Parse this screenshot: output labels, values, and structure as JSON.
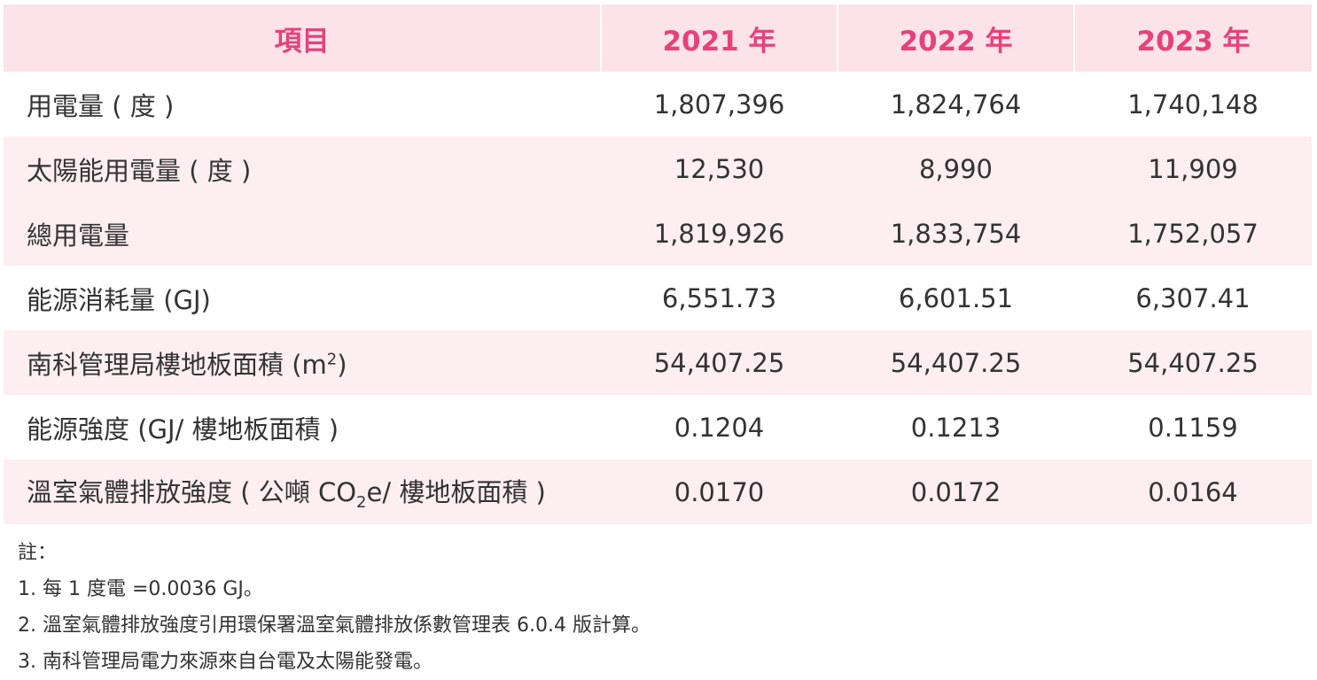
{
  "table": {
    "headers": [
      "項目",
      "2021 年",
      "2022 年",
      "2023 年"
    ],
    "rows": [
      {
        "label": "用電量 ( 度 )",
        "values": [
          "1,807,396",
          "1,824,764",
          "1,740,148"
        ]
      },
      {
        "label": "太陽能用電量 ( 度 )",
        "values": [
          "12,530",
          "8,990",
          "11,909"
        ]
      },
      {
        "label": "總用電量",
        "values": [
          "1,819,926",
          "1,833,754",
          "1,752,057"
        ]
      },
      {
        "label": "能源消耗量 (GJ)",
        "values": [
          "6,551.73",
          "6,601.51",
          "6,307.41"
        ]
      },
      {
        "label_prefix": "南科管理局樓地板面積 (m",
        "label_sup": "2",
        "label_suffix": ")",
        "values": [
          "54,407.25",
          "54,407.25",
          "54,407.25"
        ]
      },
      {
        "label": "能源強度 (GJ/ 樓地板面積 )",
        "values": [
          "0.1204",
          "0.1213",
          "0.1159"
        ]
      },
      {
        "label_prefix": "溫室氣體排放強度 ( 公噸 CO",
        "label_sub": "2",
        "label_suffix": "e/ 樓地板面積 )",
        "values": [
          "0.0170",
          "0.0172",
          "0.0164"
        ]
      }
    ]
  },
  "notes": {
    "title": "註：",
    "items": [
      "1. 每 1 度電 =0.0036 GJ。",
      "2. 溫室氣體排放強度引用環保署溫室氣體排放係數管理表 6.0.4 版計算。",
      "3. 南科管理局電力來源來自台電及太陽能發電。"
    ]
  },
  "colors": {
    "header_bg": "#fbe3e9",
    "header_text": "#e5427a",
    "row_alt_bg": "#fdeef1",
    "text": "#333333"
  }
}
